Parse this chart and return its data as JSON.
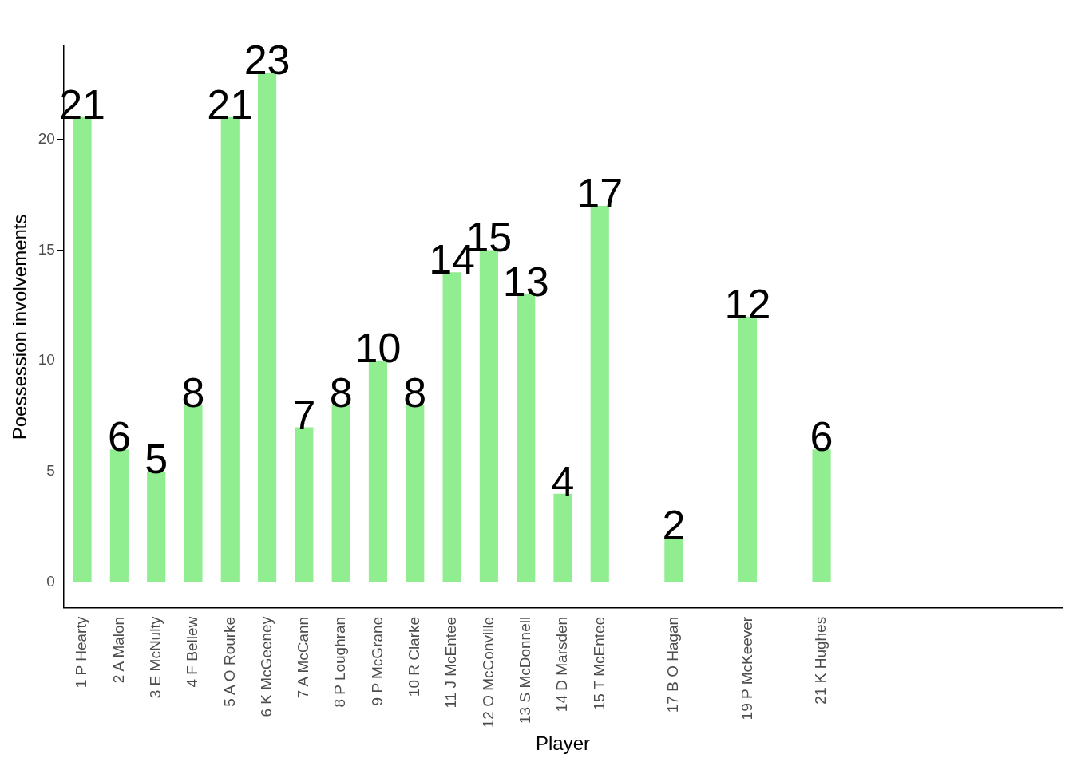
{
  "chart_data": {
    "type": "bar",
    "xlabel": "Player",
    "ylabel": "Poessession involvements",
    "categories": [
      "1 P Hearty",
      "2 A Malon",
      "3 E McNulty",
      "4 F Bellew",
      "5 A O Rourke",
      "6 K McGeeney",
      "7 A McCann",
      "8 P Loughran",
      "9 P McGrane",
      "10 R Clarke",
      "11 J McEntee",
      "12 O McConville",
      "13 S McDonnell",
      "14 D Marsden",
      "15 T McEntee",
      null,
      "17 B O Hagan",
      null,
      "19 P McKeever",
      null,
      "21 K Hughes",
      null,
      null,
      null,
      null,
      null,
      null
    ],
    "values": [
      21,
      6,
      5,
      8,
      21,
      23,
      7,
      8,
      10,
      8,
      14,
      15,
      13,
      4,
      17,
      null,
      2,
      null,
      12,
      null,
      6,
      null,
      null,
      null,
      null,
      null,
      null
    ],
    "color": "#90ee90",
    "ylim": [
      -1.15,
      24.2
    ],
    "yticks": [
      0,
      5,
      10,
      15,
      20
    ],
    "grid": false,
    "legend": false,
    "data_labels": true
  }
}
